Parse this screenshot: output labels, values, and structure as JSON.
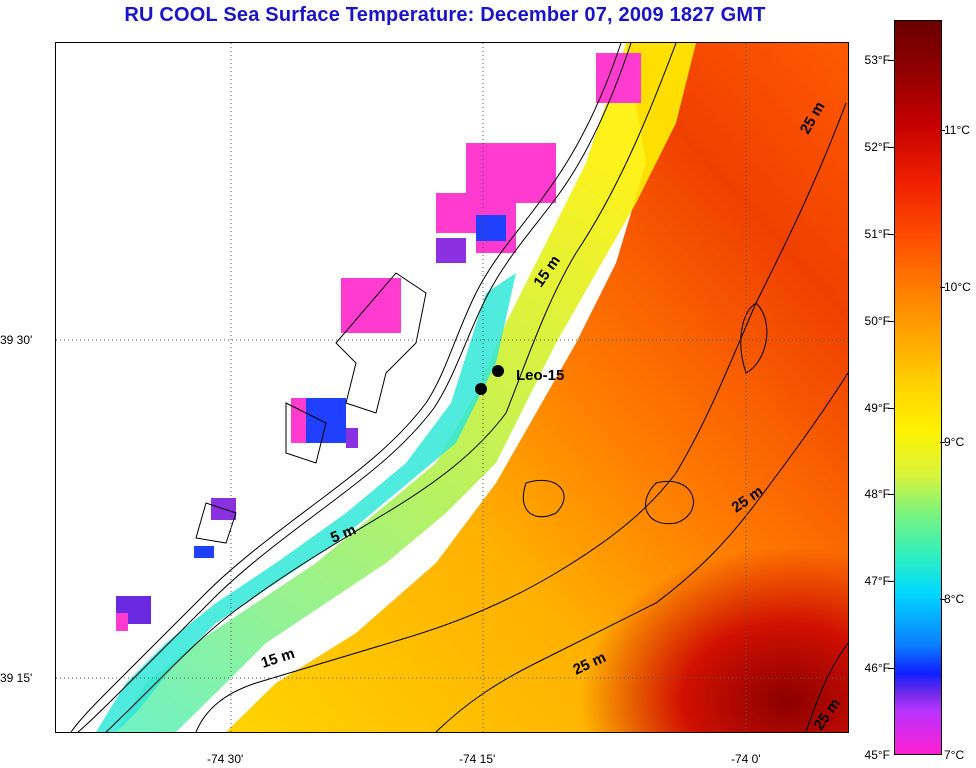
{
  "title": "RU COOL  Sea Surface Temperature:  December 07, 2009 1827 GMT",
  "latitude_labels": [
    "39 30'",
    "39 15'"
  ],
  "longitude_labels": [
    "-74 30'",
    "-74 15'",
    "-74 0'"
  ],
  "station": {
    "name": "Leo-15"
  },
  "contours": [
    "5 m",
    "15 m",
    "15 m",
    "25 m",
    "25 m",
    "25 m",
    "25 m"
  ],
  "colorbar": {
    "fahrenheit": [
      "53°F",
      "52°F",
      "51°F",
      "50°F",
      "49°F",
      "48°F",
      "47°F",
      "46°F",
      "45°F"
    ],
    "celsius": [
      "11°C",
      "10°C",
      "9°C",
      "8°C",
      "7°C"
    ],
    "range_f": [
      45,
      53.4
    ]
  }
}
